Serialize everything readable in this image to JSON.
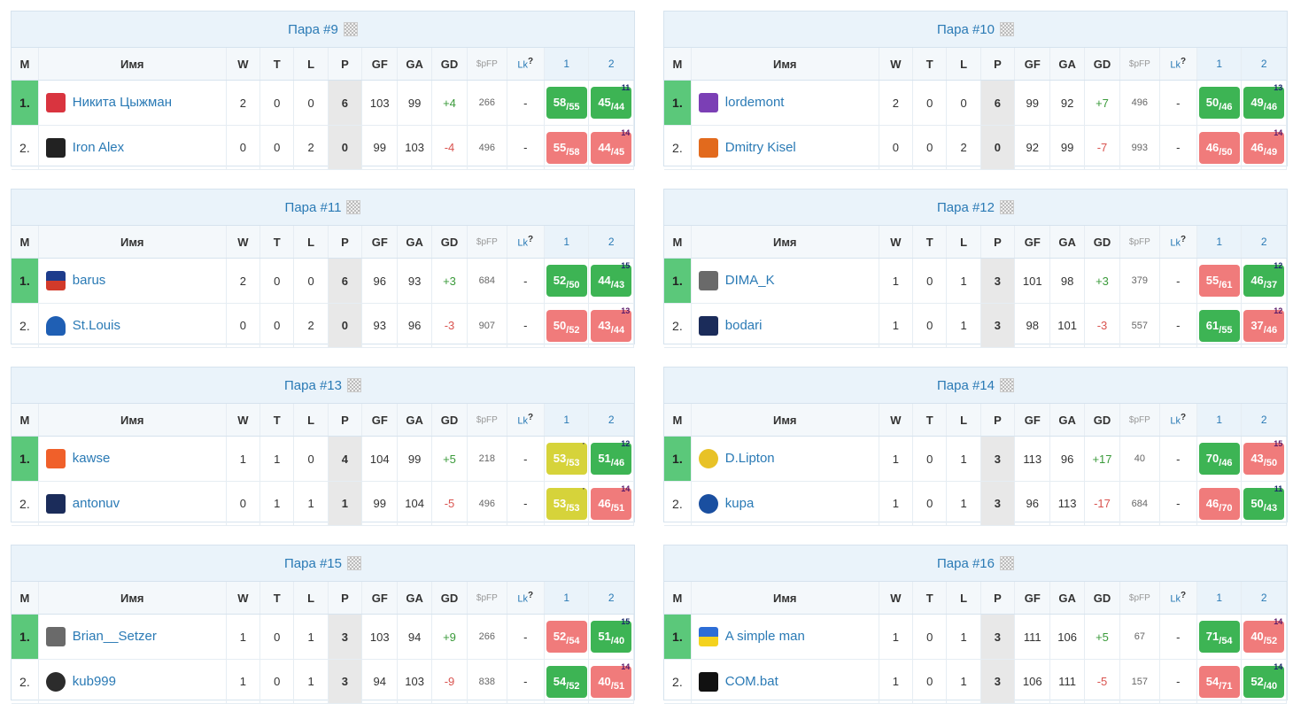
{
  "headers": {
    "m": "M",
    "name": "Имя",
    "w": "W",
    "t": "T",
    "l": "L",
    "p": "P",
    "gf": "GF",
    "ga": "GA",
    "gd": "GD",
    "spfp": "$pFP",
    "lk": "Lk",
    "lk_q": "?",
    "g1": "1",
    "g2": "2"
  },
  "colors": {
    "green": "#3db454",
    "red": "#f07b7b",
    "yellow": "#d6d33a",
    "win_rank": "#5bc87a",
    "link": "#2a7ab5"
  },
  "pairs": [
    {
      "title": "Пара #9",
      "rows": [
        {
          "rank": "1.",
          "name": "Никита Цыжман",
          "logo": "red-avatar-icon",
          "w": "2",
          "t": "0",
          "l": "0",
          "p": "6",
          "gf": "103",
          "ga": "99",
          "gd": "+4",
          "spfp": "266",
          "lk": "-",
          "g1": {
            "a": "58",
            "b": "55",
            "c": "green",
            "badge": ""
          },
          "g2": {
            "a": "45",
            "b": "44",
            "c": "green",
            "badge": "11"
          }
        },
        {
          "rank": "2.",
          "name": "Iron Alex",
          "logo": "dark-skull-icon",
          "w": "0",
          "t": "0",
          "l": "2",
          "p": "0",
          "gf": "99",
          "ga": "103",
          "gd": "-4",
          "spfp": "496",
          "lk": "-",
          "g1": {
            "a": "55",
            "b": "58",
            "c": "red",
            "badge": ""
          },
          "g2": {
            "a": "44",
            "b": "45",
            "c": "red",
            "badge": "14"
          }
        }
      ]
    },
    {
      "title": "Пара #10",
      "rows": [
        {
          "rank": "1.",
          "name": "lordemont",
          "logo": "purple-jersey-icon",
          "w": "2",
          "t": "0",
          "l": "0",
          "p": "6",
          "gf": "99",
          "ga": "92",
          "gd": "+7",
          "spfp": "496",
          "lk": "-",
          "g1": {
            "a": "50",
            "b": "46",
            "c": "green",
            "badge": ""
          },
          "g2": {
            "a": "49",
            "b": "46",
            "c": "green",
            "badge": "13"
          }
        },
        {
          "rank": "2.",
          "name": "Dmitry Kisel",
          "logo": "orange-jersey-icon",
          "w": "0",
          "t": "0",
          "l": "2",
          "p": "0",
          "gf": "92",
          "ga": "99",
          "gd": "-7",
          "spfp": "993",
          "lk": "-",
          "g1": {
            "a": "46",
            "b": "50",
            "c": "red",
            "badge": ""
          },
          "g2": {
            "a": "46",
            "b": "49",
            "c": "red",
            "badge": "14"
          }
        }
      ]
    },
    {
      "title": "Пара #11",
      "rows": [
        {
          "rank": "1.",
          "name": "barus",
          "logo": "team-logo-icon",
          "w": "2",
          "t": "0",
          "l": "0",
          "p": "6",
          "gf": "96",
          "ga": "93",
          "gd": "+3",
          "spfp": "684",
          "lk": "-",
          "g1": {
            "a": "52",
            "b": "50",
            "c": "green",
            "badge": ""
          },
          "g2": {
            "a": "44",
            "b": "43",
            "c": "green",
            "badge": "15"
          }
        },
        {
          "rank": "2.",
          "name": "St.Louis",
          "logo": "blue-note-icon",
          "w": "0",
          "t": "0",
          "l": "2",
          "p": "0",
          "gf": "93",
          "ga": "96",
          "gd": "-3",
          "spfp": "907",
          "lk": "-",
          "g1": {
            "a": "50",
            "b": "52",
            "c": "red",
            "badge": ""
          },
          "g2": {
            "a": "43",
            "b": "44",
            "c": "red",
            "badge": "13"
          }
        }
      ]
    },
    {
      "title": "Пара #12",
      "rows": [
        {
          "rank": "1.",
          "name": "DIMA_K",
          "logo": "photo-avatar-icon",
          "w": "1",
          "t": "0",
          "l": "1",
          "p": "3",
          "gf": "101",
          "ga": "98",
          "gd": "+3",
          "spfp": "379",
          "lk": "-",
          "g1": {
            "a": "55",
            "b": "61",
            "c": "red",
            "badge": ""
          },
          "g2": {
            "a": "46",
            "b": "37",
            "c": "green",
            "badge": "12"
          }
        },
        {
          "rank": "2.",
          "name": "bodari",
          "logo": "navy-jersey-icon",
          "w": "1",
          "t": "0",
          "l": "1",
          "p": "3",
          "gf": "98",
          "ga": "101",
          "gd": "-3",
          "spfp": "557",
          "lk": "-",
          "g1": {
            "a": "61",
            "b": "55",
            "c": "green",
            "badge": ""
          },
          "g2": {
            "a": "37",
            "b": "46",
            "c": "red",
            "badge": "12"
          }
        }
      ]
    },
    {
      "title": "Пара #13",
      "rows": [
        {
          "rank": "1.",
          "name": "kawse",
          "logo": "flyers-logo-icon",
          "w": "1",
          "t": "1",
          "l": "0",
          "p": "4",
          "gf": "104",
          "ga": "99",
          "gd": "+5",
          "spfp": "218",
          "lk": "-",
          "g1": {
            "a": "53",
            "b": "53",
            "c": "yellow",
            "badge": "·"
          },
          "g2": {
            "a": "51",
            "b": "46",
            "c": "green",
            "badge": "12"
          }
        },
        {
          "rank": "2.",
          "name": "antonuv",
          "logo": "navy-jersey-icon",
          "w": "0",
          "t": "1",
          "l": "1",
          "p": "1",
          "gf": "99",
          "ga": "104",
          "gd": "-5",
          "spfp": "496",
          "lk": "-",
          "g1": {
            "a": "53",
            "b": "53",
            "c": "yellow",
            "badge": "·"
          },
          "g2": {
            "a": "46",
            "b": "51",
            "c": "red",
            "badge": "14"
          }
        }
      ]
    },
    {
      "title": "Пара #14",
      "rows": [
        {
          "rank": "1.",
          "name": "D.Lipton",
          "logo": "lipton-logo-icon",
          "w": "1",
          "t": "0",
          "l": "1",
          "p": "3",
          "gf": "113",
          "ga": "96",
          "gd": "+17",
          "spfp": "40",
          "lk": "-",
          "g1": {
            "a": "70",
            "b": "46",
            "c": "green",
            "badge": ""
          },
          "g2": {
            "a": "43",
            "b": "50",
            "c": "red",
            "badge": "15"
          }
        },
        {
          "rank": "2.",
          "name": "kupa",
          "logo": "sabres-logo-icon",
          "w": "1",
          "t": "0",
          "l": "1",
          "p": "3",
          "gf": "96",
          "ga": "113",
          "gd": "-17",
          "spfp": "684",
          "lk": "-",
          "g1": {
            "a": "46",
            "b": "70",
            "c": "red",
            "badge": ""
          },
          "g2": {
            "a": "50",
            "b": "43",
            "c": "green",
            "badge": "11"
          }
        }
      ]
    },
    {
      "title": "Пара #15",
      "rows": [
        {
          "rank": "1.",
          "name": "Brian__Setzer",
          "logo": "photo-avatar-icon",
          "w": "1",
          "t": "0",
          "l": "1",
          "p": "3",
          "gf": "103",
          "ga": "94",
          "gd": "+9",
          "spfp": "266",
          "lk": "-",
          "g1": {
            "a": "52",
            "b": "54",
            "c": "red",
            "badge": ""
          },
          "g2": {
            "a": "51",
            "b": "40",
            "c": "green",
            "badge": "15"
          }
        },
        {
          "rank": "2.",
          "name": "kub999",
          "logo": "robot-icon",
          "w": "1",
          "t": "0",
          "l": "1",
          "p": "3",
          "gf": "94",
          "ga": "103",
          "gd": "-9",
          "spfp": "838",
          "lk": "-",
          "g1": {
            "a": "54",
            "b": "52",
            "c": "green",
            "badge": ""
          },
          "g2": {
            "a": "40",
            "b": "51",
            "c": "red",
            "badge": "14"
          }
        }
      ]
    },
    {
      "title": "Пара #16",
      "rows": [
        {
          "rank": "1.",
          "name": "A simple man",
          "logo": "ukraine-flag-icon",
          "w": "1",
          "t": "0",
          "l": "1",
          "p": "3",
          "gf": "111",
          "ga": "106",
          "gd": "+5",
          "spfp": "67",
          "lk": "-",
          "g1": {
            "a": "71",
            "b": "54",
            "c": "green",
            "badge": ""
          },
          "g2": {
            "a": "40",
            "b": "52",
            "c": "red",
            "badge": "14"
          }
        },
        {
          "rank": "2.",
          "name": "COM.bat",
          "logo": "batman-icon",
          "w": "1",
          "t": "0",
          "l": "1",
          "p": "3",
          "gf": "106",
          "ga": "111",
          "gd": "-5",
          "spfp": "157",
          "lk": "-",
          "g1": {
            "a": "54",
            "b": "71",
            "c": "red",
            "badge": ""
          },
          "g2": {
            "a": "52",
            "b": "40",
            "c": "green",
            "badge": "14"
          }
        }
      ]
    }
  ]
}
